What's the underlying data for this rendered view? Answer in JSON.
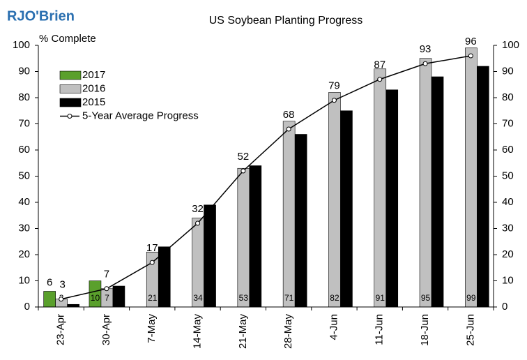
{
  "chart_data": {
    "type": "bar",
    "title": "US Soybean Planting Progress",
    "logo": "RJO'Brien",
    "ylabel": "% Complete",
    "categories": [
      "23-Apr",
      "30-Apr",
      "7-May",
      "14-May",
      "21-May",
      "28-May",
      "4-Jun",
      "11-Jun",
      "18-Jun",
      "25-Jun"
    ],
    "series": [
      {
        "name": "2017",
        "color": "#5aa02c",
        "values": [
          6,
          10,
          null,
          null,
          null,
          null,
          null,
          null,
          null,
          null
        ]
      },
      {
        "name": "2016",
        "color": "#c0c0c0",
        "values": [
          3,
          7,
          21,
          34,
          53,
          71,
          82,
          91,
          95,
          99
        ]
      },
      {
        "name": "2015",
        "color": "#000000",
        "values": [
          1,
          8,
          23,
          39,
          54,
          66,
          75,
          83,
          88,
          92
        ]
      },
      {
        "name": "5-Year Average Progress",
        "type": "line",
        "color": "#000000",
        "values": [
          3,
          7,
          17,
          32,
          52,
          68,
          79,
          87,
          93,
          96
        ]
      }
    ],
    "ylim": [
      0,
      100
    ],
    "yticks": [
      0,
      10,
      20,
      30,
      40,
      50,
      60,
      70,
      80,
      90,
      100
    ],
    "grid": false
  }
}
